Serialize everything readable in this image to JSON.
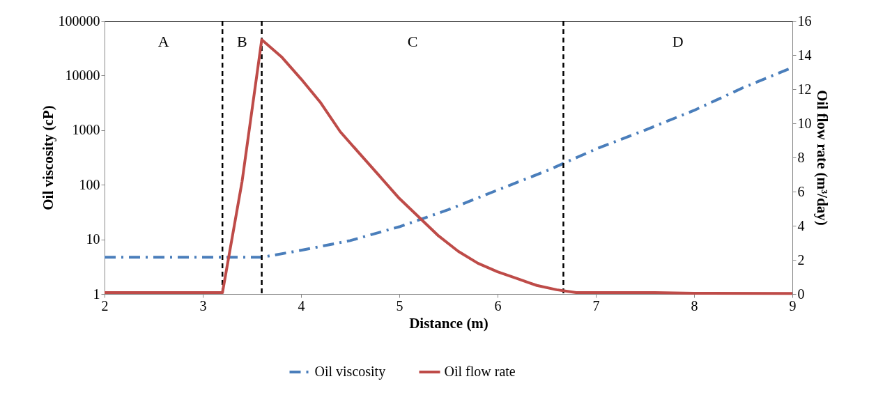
{
  "chart_data": {
    "type": "line",
    "xlabel": "Distance (m)",
    "ylabel": "Oil viscosity (cP)",
    "y2label": "Oil flow rate (m³/day)",
    "xlim": [
      2,
      9
    ],
    "xticks": [
      2,
      3,
      4,
      5,
      6,
      7,
      8,
      9
    ],
    "ylim": [
      1,
      100000
    ],
    "yticks": [
      1,
      10,
      100,
      1000,
      10000,
      100000
    ],
    "log": "y",
    "y2lim": [
      0,
      16
    ],
    "y2ticks": [
      0,
      2,
      4,
      6,
      8,
      10,
      12,
      14,
      16
    ],
    "series": [
      {
        "name": "Oil viscosity",
        "color": "#4a7ebb",
        "line_style": "dashed",
        "x": [
          2,
          3.6,
          4,
          4.5,
          5,
          5.5,
          6,
          6.5,
          7,
          7.5,
          8,
          8.5,
          9
        ],
        "values": [
          4.7,
          4.7,
          6.3,
          9.5,
          17,
          35,
          80,
          180,
          450,
          1000,
          2300,
          6000,
          14000
        ]
      },
      {
        "name": "Oil flow rate",
        "color": "#be4b48",
        "line_style": "solid",
        "axis": "y2",
        "x": [
          2,
          3.2,
          3.4,
          3.6,
          3.8,
          4,
          4.2,
          4.4,
          4.6,
          4.8,
          5,
          5.2,
          5.4,
          5.6,
          5.8,
          6,
          6.2,
          6.4,
          6.6,
          6.8,
          7.6,
          8,
          9
        ],
        "values": [
          0.08,
          0.08,
          6.6,
          14.9,
          13.9,
          12.6,
          11.2,
          9.5,
          8.2,
          6.9,
          5.6,
          4.5,
          3.4,
          2.5,
          1.8,
          1.3,
          0.9,
          0.5,
          0.25,
          0.08,
          0.08,
          0.04,
          0.03
        ]
      }
    ],
    "ref_lines": [
      {
        "axis": "x",
        "value": 3.2,
        "color": "#000000",
        "line_style": "dashed"
      },
      {
        "axis": "x",
        "value": 3.6,
        "color": "#000000",
        "line_style": "dashed"
      },
      {
        "axis": "x",
        "value": 6.67,
        "color": "#000000",
        "line_style": "dashed"
      }
    ],
    "annotations": [
      "A",
      "B",
      "C",
      "D"
    ],
    "grid": false,
    "legend": "bottom",
    "marker": "none"
  }
}
